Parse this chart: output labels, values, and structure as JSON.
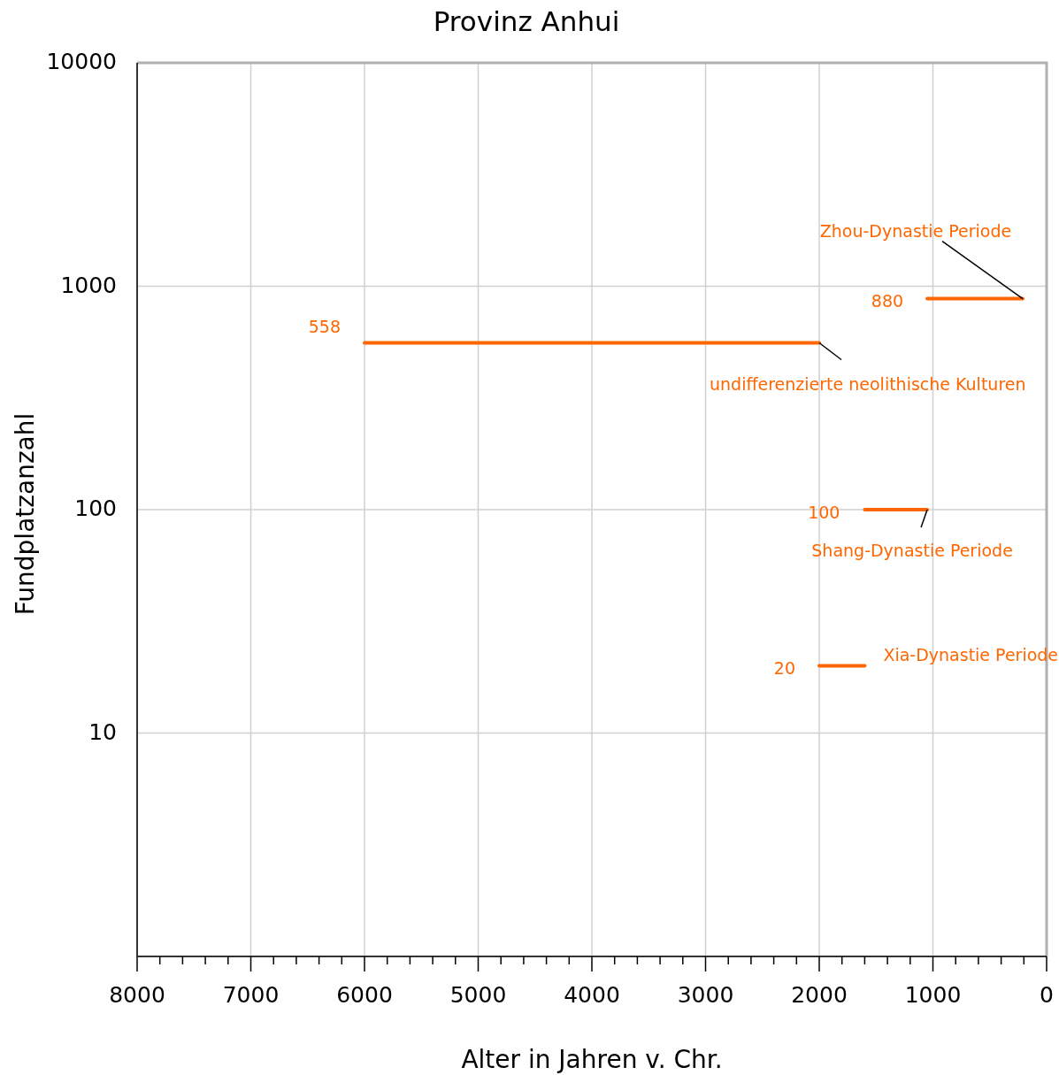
{
  "chart_data": {
    "type": "line",
    "title": "Provinz Anhui",
    "xlabel": "Alter in Jahren v. Chr.",
    "ylabel": "Fundplatzanzahl",
    "log": "y",
    "grid": true,
    "marker": "none",
    "line_style": "solid",
    "xlim": [
      8000,
      0
    ],
    "xticks": [
      8000,
      {
        "value": 7800,
        "label": null
      },
      {
        "value": 7600,
        "label": null
      },
      {
        "value": 7400,
        "label": null
      },
      {
        "value": 7200,
        "label": null
      },
      7000,
      {
        "value": 6800,
        "label": null
      },
      {
        "value": 6600,
        "label": null
      },
      {
        "value": 6400,
        "label": null
      },
      {
        "value": 6200,
        "label": null
      },
      6000,
      {
        "value": 5800,
        "label": null
      },
      {
        "value": 5600,
        "label": null
      },
      {
        "value": 5400,
        "label": null
      },
      {
        "value": 5200,
        "label": null
      },
      5000,
      {
        "value": 4800,
        "label": null
      },
      {
        "value": 4600,
        "label": null
      },
      {
        "value": 4400,
        "label": null
      },
      {
        "value": 4200,
        "label": null
      },
      4000,
      {
        "value": 3800,
        "label": null
      },
      {
        "value": 3600,
        "label": null
      },
      {
        "value": 3400,
        "label": null
      },
      {
        "value": 3200,
        "label": null
      },
      3000,
      {
        "value": 2800,
        "label": null
      },
      {
        "value": 2600,
        "label": null
      },
      {
        "value": 2400,
        "label": null
      },
      {
        "value": 2200,
        "label": null
      },
      2000,
      {
        "value": 1800,
        "label": null
      },
      {
        "value": 1600,
        "label": null
      },
      {
        "value": 1400,
        "label": null
      },
      {
        "value": 1200,
        "label": null
      },
      1000,
      {
        "value": 800,
        "label": null
      },
      {
        "value": 600,
        "label": null
      },
      {
        "value": 400,
        "label": null
      },
      {
        "value": 200,
        "label": null
      },
      0
    ],
    "ylim": [
      1,
      10000
    ],
    "yticks": [
      10,
      100,
      1000,
      10000
    ],
    "series": [
      {
        "name": "undifferenzierte neolithische Kulturen",
        "color": "#ff6600",
        "x": [
          6000,
          2000
        ],
        "values": [
          558,
          558
        ],
        "value_labels": [
          "558",
          null
        ]
      },
      {
        "name": "Zhou-Dynastie Periode",
        "color": "#ff6600",
        "x": [
          1050,
          210
        ],
        "values": [
          880,
          880
        ],
        "value_labels": [
          "880",
          null
        ]
      },
      {
        "name": "Shang-Dynastie Periode",
        "color": "#ff6600",
        "x": [
          1600,
          1050
        ],
        "values": [
          100,
          100
        ],
        "value_labels": [
          "100",
          null
        ]
      },
      {
        "name": "Xia-Dynastie Periode",
        "color": "#ff6600",
        "x": [
          2000,
          1600
        ],
        "values": [
          20,
          20
        ],
        "value_labels": [
          "20",
          null
        ]
      }
    ]
  }
}
